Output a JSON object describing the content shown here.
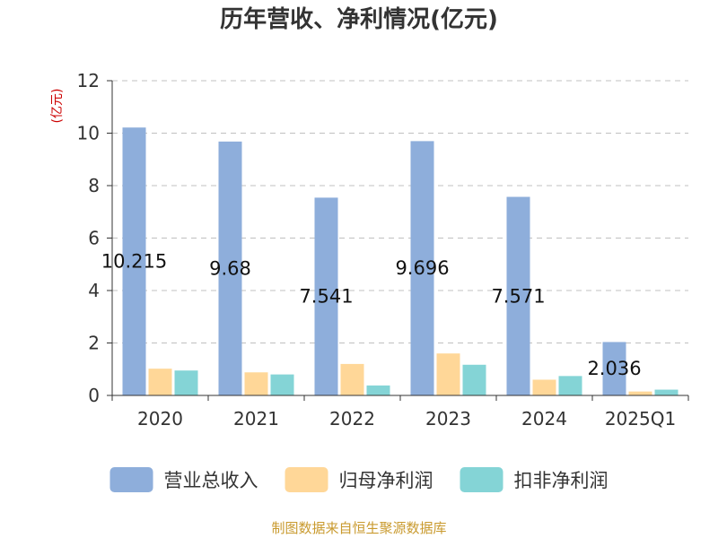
{
  "chart_data": {
    "type": "bar",
    "title": "历年营收、净利情况(亿元)",
    "ylabel": "(亿元)",
    "xlabel": "",
    "ylim": [
      0,
      12
    ],
    "yticks": [
      0,
      2,
      4,
      6,
      8,
      10,
      12
    ],
    "grid": true,
    "legend_position": "bottom",
    "categories": [
      "2020",
      "2021",
      "2022",
      "2023",
      "2024",
      "2025Q1"
    ],
    "series": [
      {
        "name": "营业总收入",
        "color": "#8eaedb",
        "values": [
          10.215,
          9.68,
          7.541,
          9.696,
          7.571,
          2.036
        ],
        "data_labels": [
          "10.215",
          "9.68",
          "7.541",
          "9.696",
          "7.571",
          "2.036"
        ]
      },
      {
        "name": "归母净利润",
        "color": "#ffd798",
        "values": [
          1.02,
          0.88,
          1.2,
          1.6,
          0.6,
          0.15
        ]
      },
      {
        "name": "扣非净利润",
        "color": "#84d4d6",
        "values": [
          0.95,
          0.8,
          0.38,
          1.17,
          0.74,
          0.22
        ]
      }
    ]
  },
  "colors": {
    "ylabel": "#cc0000",
    "source": "#c99a2e"
  },
  "source": "制图数据来自恒生聚源数据库"
}
